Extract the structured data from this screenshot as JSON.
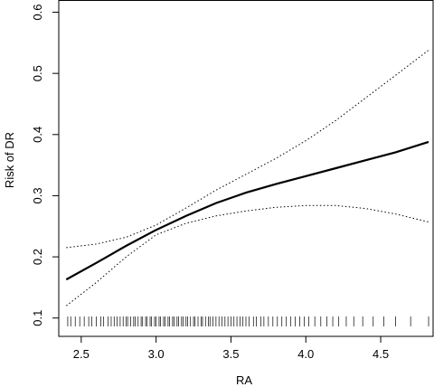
{
  "chart_data": {
    "type": "line",
    "title": "",
    "xlabel": "RA",
    "ylabel": "Risk of DR",
    "xlim": [
      2.35,
      4.85
    ],
    "ylim": [
      0.07,
      0.62
    ],
    "xticks": [
      "2.5",
      "3.0",
      "3.5",
      "4.0",
      "4.5"
    ],
    "yticks": [
      "0.1",
      "0.2",
      "0.3",
      "0.4",
      "0.5",
      "0.6"
    ],
    "grid": false,
    "legend": "none",
    "series": [
      {
        "role": "estimate",
        "x": [
          2.4,
          2.6,
          2.8,
          3.0,
          3.2,
          3.4,
          3.6,
          3.8,
          4.0,
          4.2,
          4.4,
          4.6,
          4.82
        ],
        "y": [
          0.163,
          0.19,
          0.218,
          0.244,
          0.267,
          0.288,
          0.305,
          0.319,
          0.332,
          0.345,
          0.358,
          0.371,
          0.388
        ]
      },
      {
        "role": "ci_upper",
        "x": [
          2.4,
          2.6,
          2.8,
          3.0,
          3.2,
          3.4,
          3.6,
          3.8,
          4.0,
          4.2,
          4.4,
          4.6,
          4.82
        ],
        "y": [
          0.215,
          0.221,
          0.232,
          0.252,
          0.28,
          0.309,
          0.335,
          0.361,
          0.39,
          0.423,
          0.46,
          0.497,
          0.538
        ]
      },
      {
        "role": "ci_lower",
        "x": [
          2.4,
          2.6,
          2.8,
          3.0,
          3.2,
          3.4,
          3.6,
          3.8,
          4.0,
          4.2,
          4.4,
          4.6,
          4.82
        ],
        "y": [
          0.12,
          0.158,
          0.2,
          0.236,
          0.255,
          0.267,
          0.275,
          0.281,
          0.284,
          0.284,
          0.279,
          0.27,
          0.257
        ]
      }
    ],
    "rug_x": [
      2.41,
      2.43,
      2.46,
      2.49,
      2.52,
      2.55,
      2.57,
      2.6,
      2.63,
      2.65,
      2.68,
      2.7,
      2.72,
      2.74,
      2.76,
      2.78,
      2.8,
      2.81,
      2.83,
      2.85,
      2.86,
      2.88,
      2.9,
      2.91,
      2.93,
      2.94,
      2.96,
      2.97,
      2.99,
      3.0,
      3.02,
      3.03,
      3.05,
      3.06,
      3.08,
      3.09,
      3.11,
      3.12,
      3.14,
      3.15,
      3.17,
      3.18,
      3.2,
      3.21,
      3.23,
      3.25,
      3.26,
      3.28,
      3.3,
      3.31,
      3.33,
      3.35,
      3.36,
      3.38,
      3.4,
      3.42,
      3.44,
      3.46,
      3.48,
      3.5,
      3.52,
      3.54,
      3.56,
      3.58,
      3.6,
      3.62,
      3.65,
      3.67,
      3.7,
      3.72,
      3.75,
      3.78,
      3.81,
      3.84,
      3.87,
      3.9,
      3.93,
      3.96,
      3.99,
      4.02,
      4.06,
      4.1,
      4.14,
      4.18,
      4.22,
      4.27,
      4.32,
      4.38,
      4.45,
      4.52,
      4.6,
      4.7,
      4.82
    ]
  }
}
